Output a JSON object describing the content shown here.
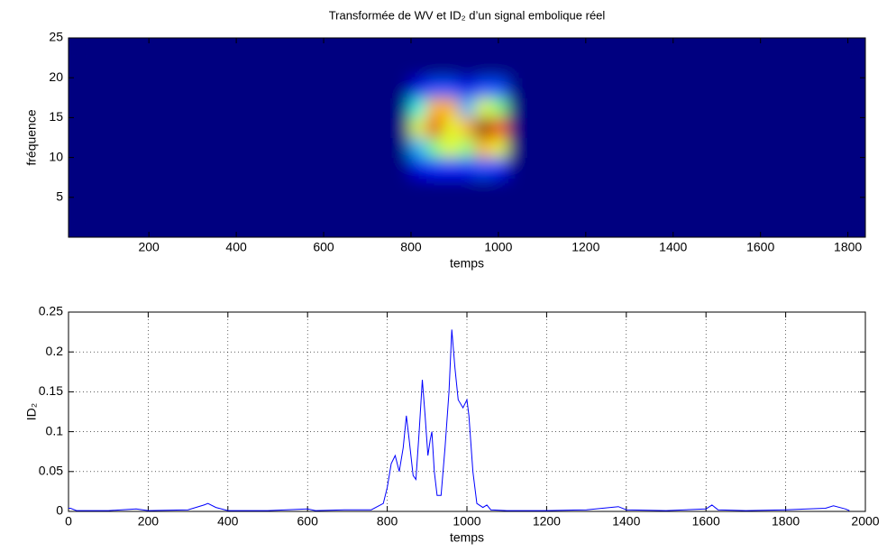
{
  "chart_data": [
    {
      "type": "heatmap",
      "title": "Transformée de WV et ID₂ d’un signal embolique réel",
      "x_label": "temps",
      "y_label": "fréquence",
      "xlim": [
        16,
        1840
      ],
      "ylim": [
        0,
        25
      ],
      "xticks": [
        200,
        400,
        600,
        800,
        1000,
        1200,
        1400,
        1600,
        1800
      ],
      "yticks": [
        5,
        10,
        15,
        20,
        25
      ],
      "grid": false,
      "z": [
        [
          0,
          0,
          0,
          0,
          0,
          0,
          0,
          0,
          0,
          0,
          0,
          0,
          0,
          0,
          0,
          0,
          0,
          0,
          0,
          0,
          0,
          0,
          0,
          0,
          0,
          0,
          0,
          0,
          0,
          0,
          0,
          0,
          0,
          0,
          0,
          0,
          0,
          0,
          0,
          0,
          0,
          0,
          0,
          0,
          0,
          0,
          0,
          0,
          0
        ],
        [
          0,
          0,
          0,
          0,
          0,
          0,
          0,
          0,
          0,
          0,
          0,
          0,
          0,
          0,
          0,
          0,
          0,
          0,
          0,
          0,
          0,
          0,
          0,
          0,
          0,
          0,
          0,
          0,
          0,
          0,
          0,
          0,
          0,
          0,
          0,
          0,
          0,
          0,
          0,
          0,
          0,
          0,
          0,
          0,
          0,
          0,
          0,
          0,
          0
        ],
        [
          0,
          0,
          0,
          0,
          0,
          0,
          0,
          0,
          0,
          0,
          0,
          0,
          0,
          0,
          0,
          0,
          0,
          0,
          0,
          0,
          0,
          0,
          0,
          0,
          0,
          0,
          0,
          0,
          0,
          0,
          0,
          0,
          0,
          0,
          0,
          0,
          0,
          0,
          0,
          0,
          0,
          0,
          0,
          0,
          0,
          0,
          0,
          0,
          0
        ],
        [
          0,
          0,
          0,
          0,
          0,
          0,
          0,
          0,
          0,
          0,
          0,
          0,
          0,
          0,
          0,
          0,
          0,
          0,
          0,
          0,
          0,
          0.1,
          0.15,
          0.15,
          0.15,
          0.2,
          0.15,
          0,
          0,
          0,
          0,
          0,
          0,
          0,
          0,
          0,
          0,
          0,
          0,
          0,
          0,
          0,
          0,
          0,
          0,
          0,
          0,
          0,
          0
        ],
        [
          0,
          0,
          0,
          0,
          0,
          0,
          0,
          0,
          0,
          0,
          0,
          0,
          0,
          0,
          0,
          0,
          0,
          0,
          0,
          0,
          0,
          0.3,
          0.5,
          0.6,
          0.5,
          0.7,
          0.6,
          0,
          0,
          0,
          0,
          0,
          0,
          0,
          0,
          0,
          0,
          0,
          0,
          0,
          0,
          0,
          0,
          0,
          0,
          0,
          0,
          0,
          0
        ],
        [
          0,
          0,
          0,
          0,
          0,
          0,
          0,
          0,
          0,
          0,
          0,
          0,
          0,
          0,
          0,
          0,
          0,
          0,
          0,
          0,
          0,
          0.6,
          0.9,
          0.6,
          0.7,
          1.0,
          0.8,
          0,
          0,
          0,
          0,
          0,
          0,
          0,
          0,
          0,
          0,
          0,
          0,
          0,
          0,
          0,
          0,
          0,
          0,
          0,
          0,
          0,
          0
        ],
        [
          0,
          0,
          0,
          0,
          0,
          0,
          0,
          0,
          0,
          0,
          0,
          0,
          0,
          0,
          0,
          0,
          0,
          0,
          0,
          0,
          0,
          0.4,
          0.7,
          0.7,
          0.3,
          0.6,
          0.5,
          0,
          0,
          0,
          0,
          0,
          0,
          0,
          0,
          0,
          0,
          0,
          0,
          0,
          0,
          0,
          0,
          0,
          0,
          0,
          0,
          0,
          0
        ],
        [
          0,
          0,
          0,
          0,
          0,
          0,
          0,
          0,
          0,
          0,
          0,
          0,
          0,
          0,
          0,
          0,
          0,
          0,
          0,
          0,
          0,
          0.1,
          0.2,
          0.2,
          0.1,
          0.2,
          0.2,
          0,
          0,
          0,
          0,
          0,
          0,
          0,
          0,
          0,
          0,
          0,
          0,
          0,
          0,
          0,
          0,
          0,
          0,
          0,
          0,
          0,
          0
        ],
        [
          0,
          0,
          0,
          0,
          0,
          0,
          0,
          0,
          0,
          0,
          0,
          0,
          0,
          0,
          0,
          0,
          0,
          0,
          0,
          0,
          0,
          0,
          0,
          0,
          0,
          0,
          0,
          0,
          0,
          0,
          0,
          0,
          0,
          0,
          0,
          0,
          0,
          0,
          0,
          0,
          0,
          0,
          0,
          0,
          0,
          0,
          0,
          0,
          0
        ],
        [
          0,
          0,
          0,
          0,
          0,
          0,
          0,
          0,
          0,
          0,
          0,
          0,
          0,
          0,
          0,
          0,
          0,
          0,
          0,
          0,
          0,
          0,
          0,
          0,
          0,
          0,
          0,
          0,
          0,
          0,
          0,
          0,
          0,
          0,
          0,
          0,
          0,
          0,
          0,
          0,
          0,
          0,
          0,
          0,
          0,
          0,
          0,
          0,
          0
        ]
      ]
    },
    {
      "type": "line",
      "x_label": "temps",
      "y_label": "ID₂",
      "xlim": [
        0,
        2000
      ],
      "ylim": [
        0,
        0.25
      ],
      "xticks": [
        0,
        200,
        400,
        600,
        800,
        1000,
        1200,
        1400,
        1600,
        1800,
        2000
      ],
      "yticks": [
        0,
        0.05,
        0.1,
        0.15,
        0.2,
        0.25
      ],
      "grid": true,
      "series": [
        {
          "color": "#0000ff",
          "x": [
            0,
            5,
            20,
            100,
            170,
            200,
            300,
            340,
            350,
            370,
            400,
            500,
            600,
            620,
            700,
            760,
            790,
            800,
            810,
            820,
            830,
            840,
            848,
            855,
            865,
            872,
            880,
            888,
            895,
            902,
            908,
            912,
            918,
            925,
            935,
            945,
            955,
            962,
            970,
            978,
            990,
            1000,
            1005,
            1015,
            1025,
            1040,
            1050,
            1060,
            1100,
            1200,
            1300,
            1380,
            1400,
            1500,
            1600,
            1615,
            1630,
            1700,
            1800,
            1900,
            1920,
            1950,
            1960
          ],
          "values": [
            0.004,
            0.004,
            0.001,
            0.001,
            0.003,
            0.001,
            0.002,
            0.008,
            0.01,
            0.005,
            0.001,
            0.001,
            0.003,
            0.001,
            0.002,
            0.002,
            0.01,
            0.03,
            0.06,
            0.07,
            0.05,
            0.08,
            0.12,
            0.09,
            0.045,
            0.04,
            0.1,
            0.165,
            0.12,
            0.07,
            0.09,
            0.1,
            0.05,
            0.02,
            0.02,
            0.08,
            0.15,
            0.228,
            0.18,
            0.14,
            0.13,
            0.14,
            0.12,
            0.05,
            0.01,
            0.005,
            0.008,
            0.002,
            0.001,
            0.001,
            0.002,
            0.006,
            0.002,
            0.001,
            0.003,
            0.008,
            0.002,
            0.001,
            0.002,
            0.004,
            0.007,
            0.003,
            0.001
          ]
        }
      ]
    }
  ]
}
